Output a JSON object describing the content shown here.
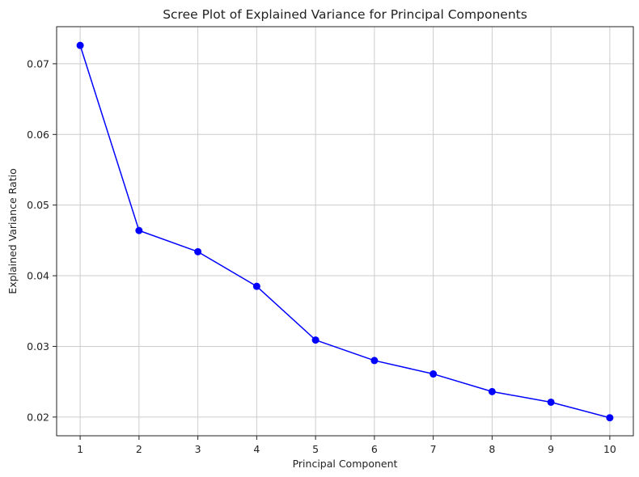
{
  "chart_data": {
    "type": "line",
    "title": "Scree Plot of Explained Variance for Principal Components",
    "xlabel": "Principal Component",
    "ylabel": "Explained Variance Ratio",
    "x": [
      1,
      2,
      3,
      4,
      5,
      6,
      7,
      8,
      9,
      10
    ],
    "series": [
      {
        "values": [
          0.0726,
          0.0464,
          0.0434,
          0.0385,
          0.0309,
          0.028,
          0.0261,
          0.0236,
          0.0221,
          0.0199
        ],
        "color": "#0000ff",
        "marker": "circle"
      }
    ],
    "xlim": [
      0.6,
      10.4
    ],
    "ylim": [
      0.01735,
      0.07525
    ],
    "xticks": [
      1,
      2,
      3,
      4,
      5,
      6,
      7,
      8,
      9,
      10
    ],
    "yticks": [
      0.02,
      0.03,
      0.04,
      0.05,
      0.06,
      0.07
    ],
    "ytick_labels": [
      "0.02",
      "0.03",
      "0.04",
      "0.05",
      "0.06",
      "0.07"
    ],
    "grid": true
  }
}
